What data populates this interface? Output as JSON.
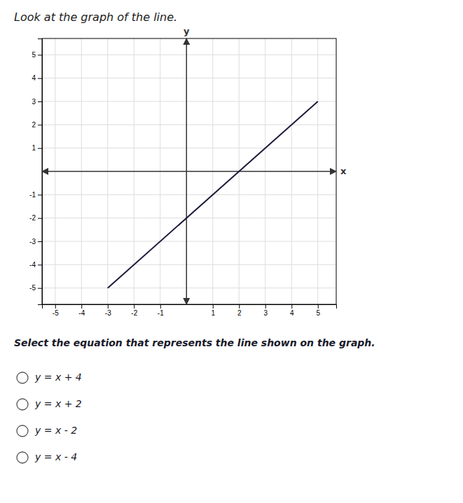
{
  "chart_data": {
    "type": "line",
    "title": "Look at the graph of the line.",
    "xlabel": "x",
    "ylabel": "y",
    "x": [
      -3,
      5
    ],
    "values": [
      -5,
      3
    ],
    "color": "#1a1a3a",
    "xlim": [
      -5.5,
      5.7
    ],
    "ylim": [
      -5.7,
      5.7
    ],
    "xticks": [
      -5,
      -4,
      -3,
      -2,
      -1,
      1,
      2,
      3,
      4,
      5
    ],
    "yticks": [
      -5,
      -4,
      -3,
      -2,
      -1,
      1,
      2,
      3,
      4,
      5
    ],
    "grid": true,
    "annotations": [
      "Select the equation that represents the line shown on the graph.",
      "y = x + 4",
      "y = x + 2",
      "y = x - 2",
      "y = x - 4"
    ]
  }
}
